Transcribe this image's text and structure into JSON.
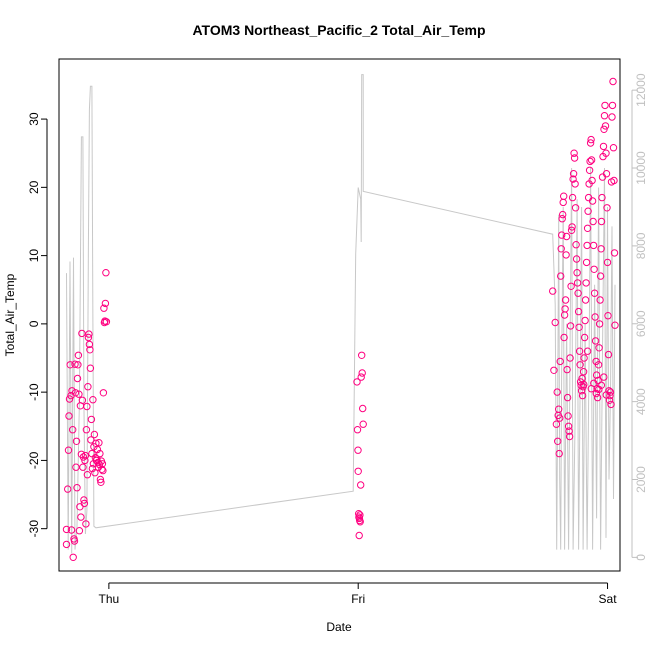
{
  "chart_data": {
    "type": "scatter",
    "title": "ATOM3 Northeast_Pacific_2 Total_Air_Temp",
    "xlabel": "Date",
    "ylabel": "Total_Air_Temp",
    "x_ticks": [
      "Thu",
      "Fri",
      "Sat"
    ],
    "x_range_days": [
      -0.2,
      2.05
    ],
    "ylim": [
      -36.2,
      38.8
    ],
    "y_ticks": [
      -30,
      -20,
      -10,
      0,
      10,
      20,
      30
    ],
    "y2lim": [
      -350,
      12800
    ],
    "y2_ticks": [
      0,
      2000,
      4000,
      6000,
      8000,
      10000,
      12000
    ],
    "grid": false,
    "point_color": "#ff0080",
    "line_color": "#c8c8c8",
    "series": [
      {
        "kind": "points",
        "points": [
          [
            -0.17,
            -30.1
          ],
          [
            -0.17,
            -32.3
          ],
          [
            -0.165,
            -24.2
          ],
          [
            -0.162,
            -18.5
          ],
          [
            -0.16,
            -13.5
          ],
          [
            -0.158,
            -11.0
          ],
          [
            -0.155,
            -6.0
          ],
          [
            -0.152,
            -10.5
          ],
          [
            -0.15,
            -30.2
          ],
          [
            -0.148,
            -9.8
          ],
          [
            -0.145,
            -15.5
          ],
          [
            -0.143,
            -34.2
          ],
          [
            -0.14,
            -31.5
          ],
          [
            -0.138,
            -31.8
          ],
          [
            -0.136,
            -5.9
          ],
          [
            -0.134,
            -10.1
          ],
          [
            -0.132,
            -21.0
          ],
          [
            -0.13,
            -17.2
          ],
          [
            -0.128,
            -24.0
          ],
          [
            -0.126,
            -8.0
          ],
          [
            -0.124,
            -6.0
          ],
          [
            -0.122,
            -4.6
          ],
          [
            -0.12,
            -10.3
          ],
          [
            -0.118,
            -30.3
          ],
          [
            -0.116,
            -26.8
          ],
          [
            -0.114,
            -12.0
          ],
          [
            -0.112,
            -28.3
          ],
          [
            -0.11,
            -19.1
          ],
          [
            -0.108,
            -1.4
          ],
          [
            -0.106,
            -11.2
          ],
          [
            -0.104,
            -21.0
          ],
          [
            -0.102,
            -19.5
          ],
          [
            -0.1,
            -25.8
          ],
          [
            -0.098,
            -26.3
          ],
          [
            -0.096,
            -20.0
          ],
          [
            -0.094,
            -19.3
          ],
          [
            -0.092,
            -29.3
          ],
          [
            -0.09,
            -15.5
          ],
          [
            -0.088,
            -12.1
          ],
          [
            -0.086,
            -22.1
          ],
          [
            -0.084,
            -9.2
          ],
          [
            -0.082,
            -2.0
          ],
          [
            -0.08,
            -1.5
          ],
          [
            -0.078,
            -3.0
          ],
          [
            -0.076,
            -3.8
          ],
          [
            -0.074,
            -6.5
          ],
          [
            -0.072,
            -17.0
          ],
          [
            -0.07,
            -14.0
          ],
          [
            -0.068,
            -19.0
          ],
          [
            -0.066,
            -21.2
          ],
          [
            -0.064,
            -11.1
          ],
          [
            -0.062,
            -20.5
          ],
          [
            -0.06,
            -18.0
          ],
          [
            -0.058,
            -16.2
          ],
          [
            -0.056,
            -21.8
          ],
          [
            -0.054,
            -19.6
          ],
          [
            -0.052,
            -17.5
          ],
          [
            -0.05,
            -20.0
          ],
          [
            -0.048,
            -19.8
          ],
          [
            -0.046,
            -18.4
          ],
          [
            -0.044,
            -20.3
          ],
          [
            -0.042,
            -21.0
          ],
          [
            -0.04,
            -17.4
          ],
          [
            -0.038,
            -20.6
          ],
          [
            -0.036,
            -19.0
          ],
          [
            -0.034,
            -22.8
          ],
          [
            -0.032,
            -23.2
          ],
          [
            -0.03,
            -20.1
          ],
          [
            -0.028,
            -21.3
          ],
          [
            -0.026,
            -20.5
          ],
          [
            -0.024,
            -21.5
          ],
          [
            -0.022,
            -10.1
          ],
          [
            -0.02,
            2.3
          ],
          [
            -0.018,
            0.2
          ],
          [
            -0.016,
            0.4
          ],
          [
            -0.014,
            3.0
          ],
          [
            -0.012,
            7.5
          ],
          [
            -0.01,
            0.3
          ],
          [
            0.995,
            -8.5
          ],
          [
            0.997,
            -15.5
          ],
          [
            0.999,
            -18.5
          ],
          [
            1.0,
            -21.6
          ],
          [
            1.002,
            -27.8
          ],
          [
            1.003,
            -28.3
          ],
          [
            1.004,
            -31.0
          ],
          [
            1.005,
            -28.5
          ],
          [
            1.006,
            -28.8
          ],
          [
            1.007,
            -28.0
          ],
          [
            1.008,
            -29.0
          ],
          [
            1.01,
            -23.6
          ],
          [
            1.012,
            -7.8
          ],
          [
            1.014,
            -4.6
          ],
          [
            1.016,
            -7.2
          ],
          [
            1.018,
            -12.4
          ],
          [
            1.02,
            -14.7
          ],
          [
            1.78,
            4.8
          ],
          [
            1.785,
            -6.8
          ],
          [
            1.79,
            0.2
          ],
          [
            1.795,
            -14.7
          ],
          [
            1.798,
            -10.0
          ],
          [
            1.8,
            -17.2
          ],
          [
            1.802,
            -13.4
          ],
          [
            1.804,
            -12.5
          ],
          [
            1.806,
            -19.0
          ],
          [
            1.808,
            -13.8
          ],
          [
            1.81,
            -5.5
          ],
          [
            1.812,
            7.0
          ],
          [
            1.814,
            11.0
          ],
          [
            1.816,
            13.0
          ],
          [
            1.818,
            15.4
          ],
          [
            1.82,
            16.0
          ],
          [
            1.822,
            17.8
          ],
          [
            1.824,
            18.7
          ],
          [
            1.826,
            -2.0
          ],
          [
            1.828,
            1.3
          ],
          [
            1.83,
            2.2
          ],
          [
            1.832,
            3.5
          ],
          [
            1.834,
            10.1
          ],
          [
            1.836,
            12.8
          ],
          [
            1.838,
            -6.7
          ],
          [
            1.84,
            -10.8
          ],
          [
            1.842,
            -13.5
          ],
          [
            1.844,
            -15.0
          ],
          [
            1.846,
            -15.7
          ],
          [
            1.848,
            -16.5
          ],
          [
            1.85,
            -5.0
          ],
          [
            1.852,
            -0.3
          ],
          [
            1.854,
            5.5
          ],
          [
            1.856,
            13.7
          ],
          [
            1.858,
            14.2
          ],
          [
            1.86,
            18.5
          ],
          [
            1.862,
            21.2
          ],
          [
            1.864,
            22.0
          ],
          [
            1.866,
            25.0
          ],
          [
            1.868,
            24.3
          ],
          [
            1.87,
            20.5
          ],
          [
            1.872,
            17.0
          ],
          [
            1.874,
            11.6
          ],
          [
            1.876,
            9.5
          ],
          [
            1.878,
            7.5
          ],
          [
            1.88,
            6.0
          ],
          [
            1.882,
            4.5
          ],
          [
            1.884,
            1.8
          ],
          [
            1.886,
            -0.5
          ],
          [
            1.888,
            -4.0
          ],
          [
            1.89,
            -6.0
          ],
          [
            1.892,
            -8.5
          ],
          [
            1.894,
            -9.0
          ],
          [
            1.896,
            -9.8
          ],
          [
            1.898,
            -8.0
          ],
          [
            1.9,
            -10.5
          ],
          [
            1.902,
            -9.2
          ],
          [
            1.904,
            -7.0
          ],
          [
            1.906,
            -5.0
          ],
          [
            1.908,
            -2.0
          ],
          [
            1.91,
            0.5
          ],
          [
            1.912,
            3.5
          ],
          [
            1.914,
            6.0
          ],
          [
            1.916,
            9.0
          ],
          [
            1.918,
            11.5
          ],
          [
            1.92,
            14.0
          ],
          [
            1.922,
            16.5
          ],
          [
            1.924,
            18.5
          ],
          [
            1.926,
            20.5
          ],
          [
            1.928,
            22.5
          ],
          [
            1.93,
            23.8
          ],
          [
            1.932,
            26.5
          ],
          [
            1.934,
            27.0
          ],
          [
            1.936,
            24.0
          ],
          [
            1.938,
            21.0
          ],
          [
            1.94,
            18.0
          ],
          [
            1.942,
            15.0
          ],
          [
            1.944,
            11.5
          ],
          [
            1.946,
            8.0
          ],
          [
            1.948,
            4.5
          ],
          [
            1.95,
            1.0
          ],
          [
            1.952,
            -2.5
          ],
          [
            1.954,
            -5.5
          ],
          [
            1.956,
            -7.5
          ],
          [
            1.958,
            -9.5
          ],
          [
            1.96,
            -10.8
          ],
          [
            1.962,
            -8.3
          ],
          [
            1.964,
            -6.0
          ],
          [
            1.966,
            -3.5
          ],
          [
            1.968,
            0.0
          ],
          [
            1.97,
            3.5
          ],
          [
            1.972,
            7.0
          ],
          [
            1.974,
            11.0
          ],
          [
            1.976,
            15.0
          ],
          [
            1.978,
            18.5
          ],
          [
            1.98,
            21.5
          ],
          [
            1.982,
            24.5
          ],
          [
            1.984,
            26.0
          ],
          [
            1.986,
            28.5
          ],
          [
            1.988,
            30.5
          ],
          [
            1.99,
            32.0
          ],
          [
            1.992,
            29.0
          ],
          [
            1.994,
            25.0
          ],
          [
            1.996,
            22.0
          ],
          [
            1.998,
            17.0
          ],
          [
            2.0,
            9.0
          ],
          [
            2.002,
            1.2
          ],
          [
            2.004,
            -4.5
          ],
          [
            2.006,
            -9.8
          ],
          [
            2.008,
            -11.2
          ],
          [
            2.01,
            -10.5
          ],
          [
            2.012,
            -10.0
          ],
          [
            2.014,
            -11.8
          ],
          [
            2.016,
            20.8
          ],
          [
            2.018,
            30.3
          ],
          [
            2.02,
            32.0
          ],
          [
            2.022,
            35.5
          ],
          [
            2.024,
            25.8
          ],
          [
            2.026,
            21.0
          ],
          [
            2.028,
            10.4
          ],
          [
            2.03,
            -0.2
          ],
          [
            1.92,
            -4.0
          ],
          [
            1.935,
            -9.5
          ],
          [
            1.945,
            -8.7
          ],
          [
            1.955,
            -10.2
          ],
          [
            1.975,
            -9.0
          ],
          [
            1.985,
            -7.8
          ],
          [
            1.995,
            -10.4
          ],
          [
            1.965,
            -9.6
          ],
          [
            1.905,
            -8.9
          ]
        ]
      },
      {
        "kind": "line",
        "axis": "right",
        "points": [
          [
            -0.17,
            7300
          ],
          [
            -0.163,
            200
          ],
          [
            -0.156,
            7600
          ],
          [
            -0.149,
            100
          ],
          [
            -0.142,
            7700
          ],
          [
            -0.136,
            200
          ],
          [
            -0.128,
            800
          ],
          [
            -0.118,
            4000
          ],
          [
            -0.11,
            10800
          ],
          [
            -0.104,
            10800
          ],
          [
            -0.1,
            4000
          ],
          [
            -0.094,
            600
          ],
          [
            -0.088,
            1200
          ],
          [
            -0.082,
            8000
          ],
          [
            -0.078,
            11500
          ],
          [
            -0.074,
            12100
          ],
          [
            -0.068,
            12100
          ],
          [
            -0.064,
            6000
          ],
          [
            -0.06,
            800
          ],
          [
            -0.052,
            760
          ],
          [
            0.98,
            1700
          ],
          [
            0.99,
            7800
          ],
          [
            1.0,
            9500
          ],
          [
            1.01,
            9200
          ],
          [
            1.012,
            8100
          ],
          [
            1.014,
            12400
          ],
          [
            1.02,
            12400
          ],
          [
            1.02,
            9400
          ],
          [
            1.78,
            8300
          ],
          [
            1.79,
            6500
          ],
          [
            1.796,
            200
          ],
          [
            1.8,
            4000
          ],
          [
            1.804,
            8800
          ],
          [
            1.808,
            2000
          ],
          [
            1.812,
            200
          ],
          [
            1.816,
            5000
          ],
          [
            1.822,
            9000
          ],
          [
            1.828,
            200
          ],
          [
            1.836,
            6000
          ],
          [
            1.844,
            200
          ],
          [
            1.85,
            5500
          ],
          [
            1.856,
            10000
          ],
          [
            1.862,
            200
          ],
          [
            1.87,
            3500
          ],
          [
            1.878,
            9200
          ],
          [
            1.884,
            200
          ],
          [
            1.89,
            4300
          ],
          [
            1.896,
            9000
          ],
          [
            1.902,
            200
          ],
          [
            1.91,
            6000
          ],
          [
            1.918,
            200
          ],
          [
            1.926,
            5200
          ],
          [
            1.932,
            10000
          ],
          [
            1.94,
            200
          ],
          [
            1.948,
            7000
          ],
          [
            1.956,
            1000
          ],
          [
            1.964,
            9500
          ],
          [
            1.972,
            200
          ],
          [
            1.98,
            5300
          ],
          [
            1.988,
            10000
          ],
          [
            1.994,
            500
          ],
          [
            2.0,
            9000
          ],
          [
            2.006,
            2000
          ],
          [
            2.012,
            4200
          ],
          [
            2.018,
            8500
          ],
          [
            2.024,
            1500
          ],
          [
            2.03,
            7000
          ]
        ]
      }
    ]
  }
}
